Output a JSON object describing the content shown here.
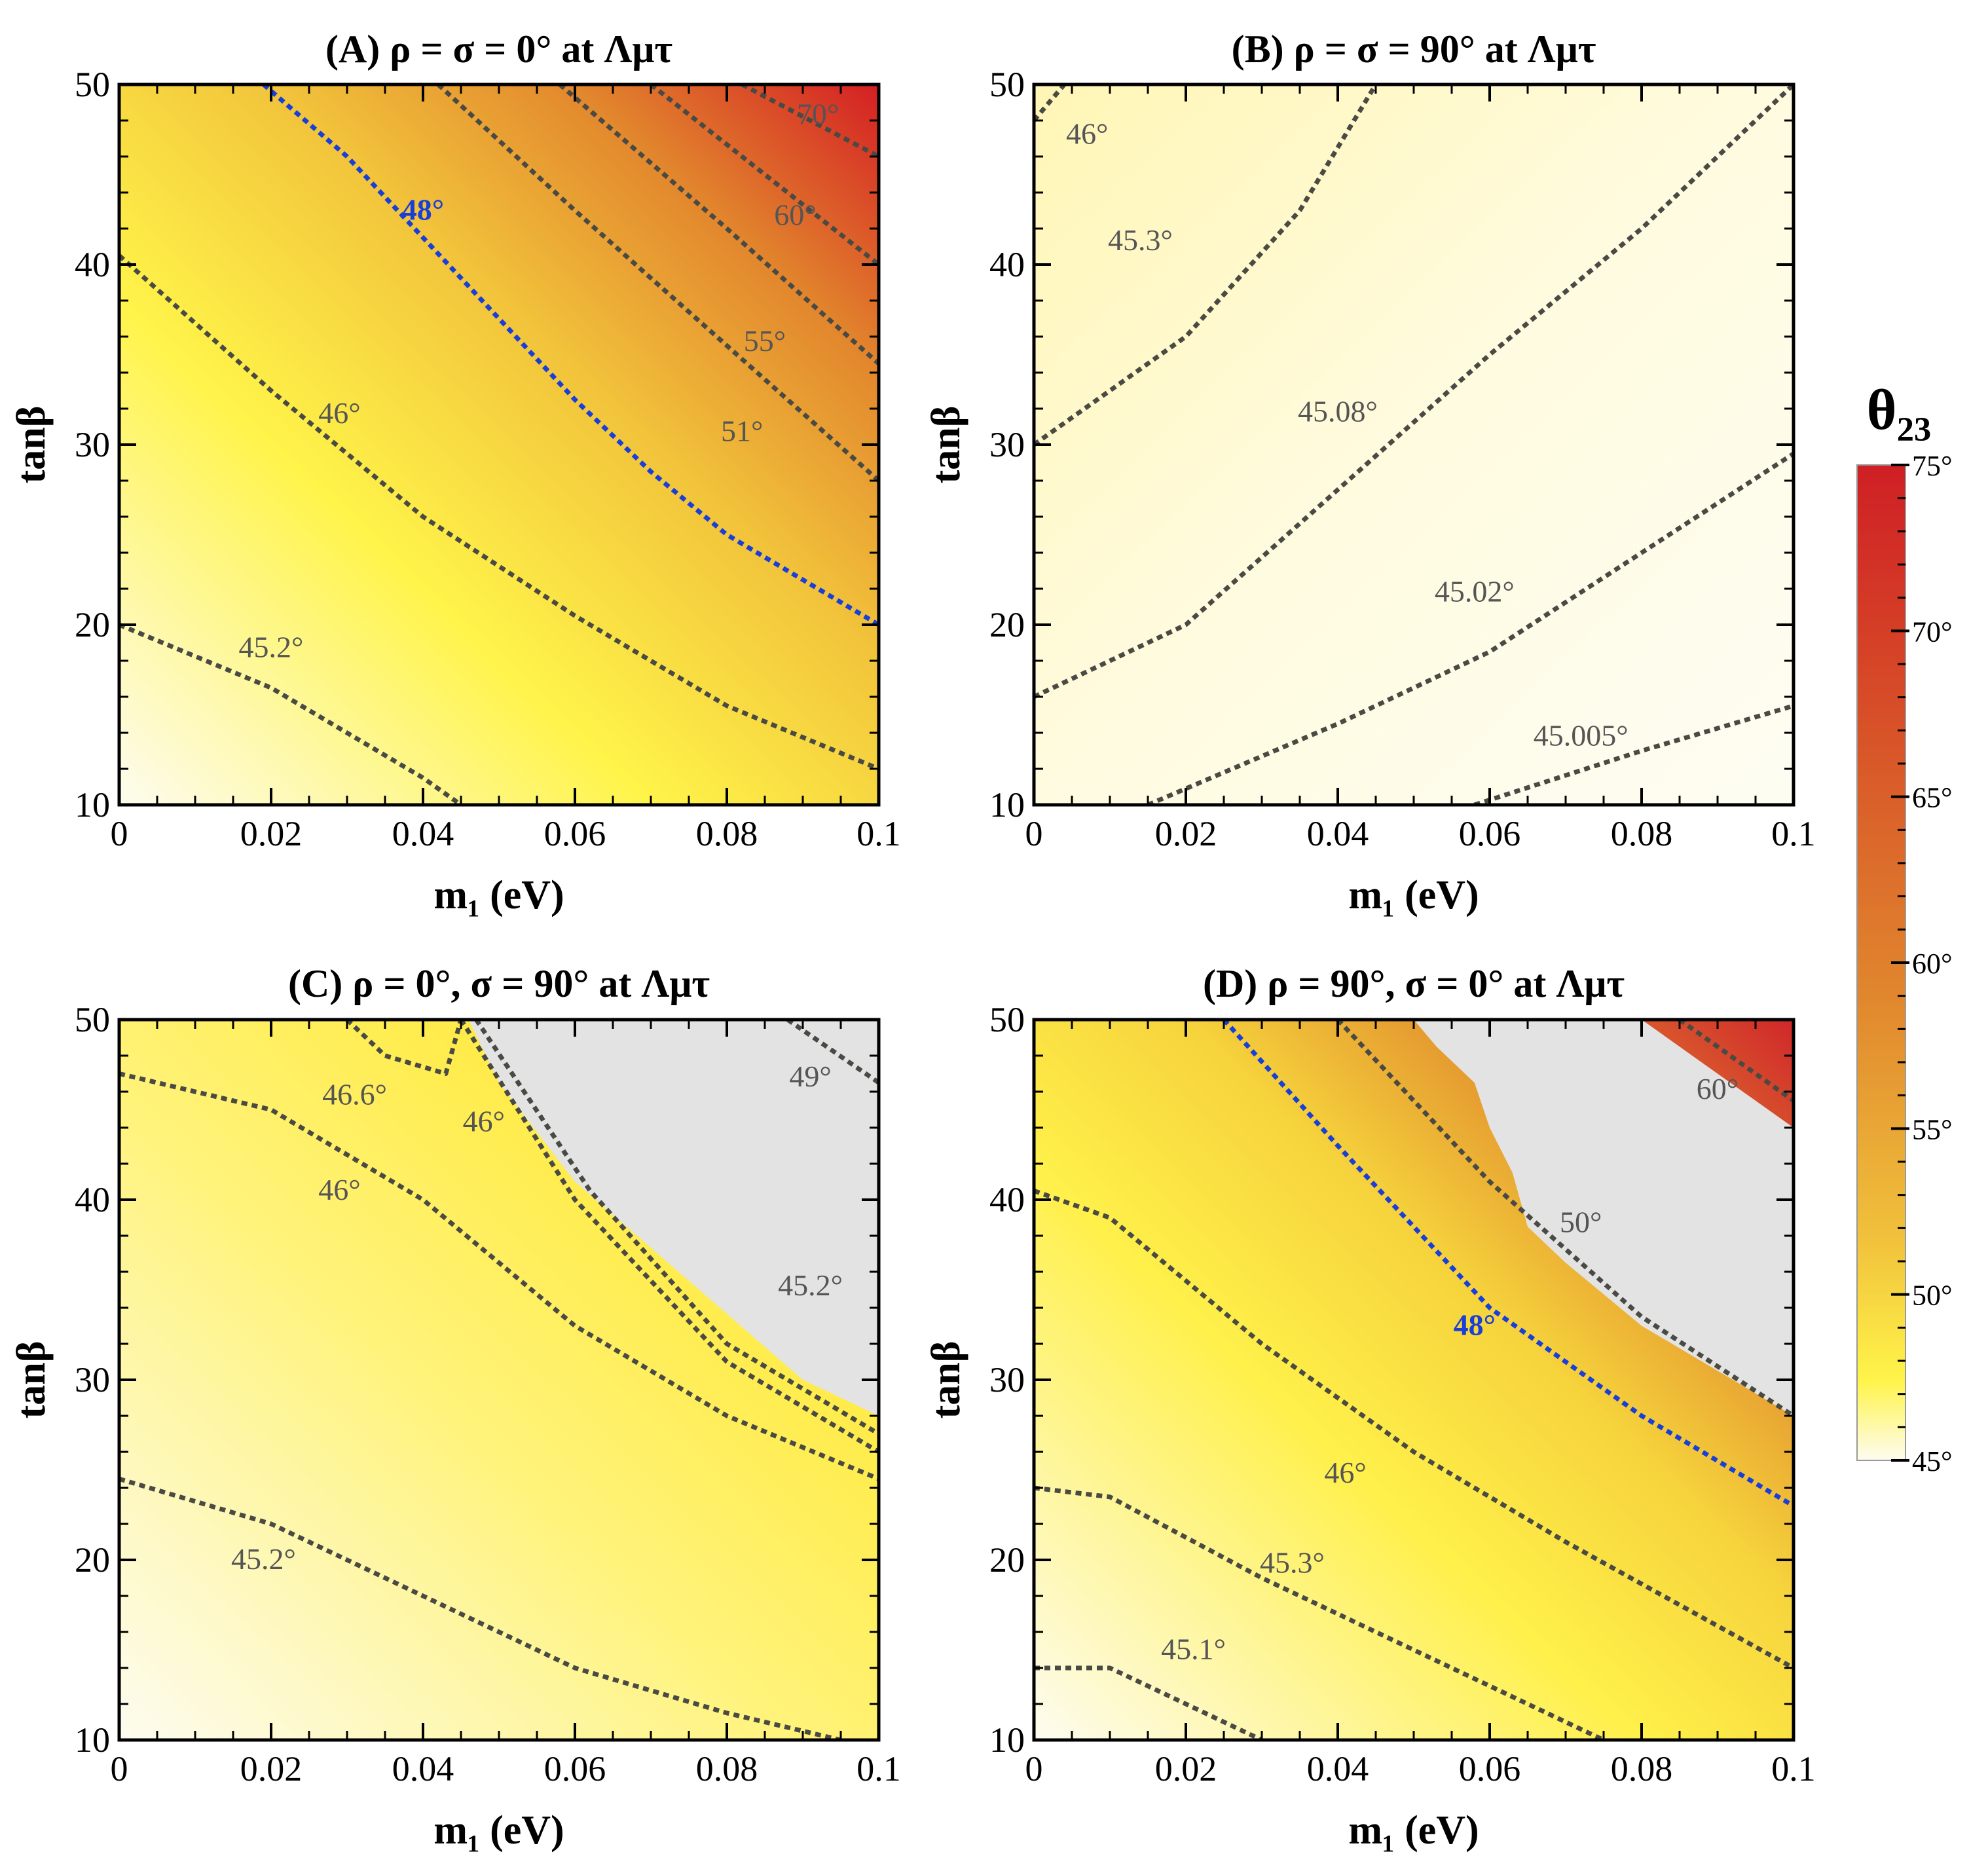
{
  "colorbar": {
    "title": "θ₂₃",
    "range": [
      45,
      75
    ],
    "ticks": [
      {
        "value": 75,
        "label": "75°"
      },
      {
        "value": 70,
        "label": "70°"
      },
      {
        "value": 65,
        "label": "65°"
      },
      {
        "value": 60,
        "label": "60°"
      },
      {
        "value": 55,
        "label": "55°"
      },
      {
        "value": 50,
        "label": "50°"
      },
      {
        "value": 45,
        "label": "45°"
      }
    ],
    "colors": [
      "#fdfcf0",
      "#fff44a",
      "#f1c23c",
      "#e18a2e",
      "#d43b26",
      "#cf1f25"
    ]
  },
  "chart_data": [
    {
      "panel": "A",
      "type": "heatmap",
      "title": "(A) ρ = σ = 0° at Λμτ",
      "xlabel": "m₁ (eV)",
      "ylabel": "tanβ",
      "xlim": [
        0,
        0.1
      ],
      "ylim": [
        10,
        50
      ],
      "xticks": [
        "0",
        "0.02",
        "0.04",
        "0.06",
        "0.08",
        "0.1"
      ],
      "yticks": [
        "10",
        "20",
        "30",
        "40",
        "50"
      ],
      "excluded_region": null,
      "contours": [
        {
          "label": "45.2°",
          "color": "gray",
          "label_at": [
            0.02,
            18.2
          ],
          "points": [
            [
              0,
              20
            ],
            [
              0.02,
              16.5
            ],
            [
              0.04,
              11.5
            ],
            [
              0.045,
              10
            ]
          ]
        },
        {
          "label": "46°",
          "color": "gray",
          "label_at": [
            0.029,
            31.2
          ],
          "points": [
            [
              0,
              40.5
            ],
            [
              0.02,
              33
            ],
            [
              0.04,
              26
            ],
            [
              0.06,
              20.5
            ],
            [
              0.08,
              15.5
            ],
            [
              0.1,
              12
            ]
          ]
        },
        {
          "label": "48°",
          "color": "blue",
          "label_at": [
            0.04,
            42.5
          ],
          "points": [
            [
              0.019,
              50
            ],
            [
              0.03,
              46
            ],
            [
              0.04,
              41.5
            ],
            [
              0.05,
              37
            ],
            [
              0.06,
              32.5
            ],
            [
              0.07,
              28.5
            ],
            [
              0.08,
              25
            ],
            [
              0.09,
              22.5
            ],
            [
              0.1,
              20
            ]
          ]
        },
        {
          "label": "51°",
          "color": "gray",
          "label_at": [
            0.082,
            30.2
          ],
          "points": [
            [
              0.042,
              50
            ],
            [
              0.06,
              43
            ],
            [
              0.08,
              35.5
            ],
            [
              0.1,
              28
            ]
          ]
        },
        {
          "label": "55°",
          "color": "gray",
          "label_at": [
            0.085,
            35.2
          ],
          "points": [
            [
              0.058,
              50
            ],
            [
              0.08,
              42
            ],
            [
              0.1,
              34.5
            ]
          ]
        },
        {
          "label": "60°",
          "color": "gray",
          "label_at": [
            0.089,
            42.2
          ],
          "points": [
            [
              0.07,
              50
            ],
            [
              0.085,
              45
            ],
            [
              0.1,
              40
            ]
          ]
        },
        {
          "label": "70°",
          "color": "gray",
          "label_at": [
            0.092,
            47.8
          ],
          "points": [
            [
              0.082,
              50
            ],
            [
              0.1,
              46
            ]
          ]
        }
      ]
    },
    {
      "panel": "B",
      "type": "heatmap",
      "title": "(B) ρ = σ = 90° at Λμτ",
      "xlabel": "m₁ (eV)",
      "ylabel": "tanβ",
      "xlim": [
        0,
        0.1
      ],
      "ylim": [
        10,
        50
      ],
      "xticks": [
        "0",
        "0.02",
        "0.04",
        "0.06",
        "0.08",
        "0.1"
      ],
      "yticks": [
        "10",
        "20",
        "30",
        "40",
        "50"
      ],
      "excluded_region": null,
      "contours": [
        {
          "label": "46°",
          "color": "gray",
          "label_at": [
            0.007,
            46.7
          ],
          "points": [
            [
              0,
              48
            ],
            [
              0.004,
              50
            ]
          ]
        },
        {
          "label": "45.3°",
          "color": "gray",
          "label_at": [
            0.014,
            40.8
          ],
          "points": [
            [
              0,
              30
            ],
            [
              0.02,
              36
            ],
            [
              0.035,
              43
            ],
            [
              0.045,
              50
            ]
          ]
        },
        {
          "label": "45.08°",
          "color": "gray",
          "label_at": [
            0.04,
            31.3
          ],
          "points": [
            [
              0,
              16
            ],
            [
              0.02,
              20
            ],
            [
              0.04,
              27.5
            ],
            [
              0.06,
              35
            ],
            [
              0.08,
              42
            ],
            [
              0.1,
              50
            ]
          ]
        },
        {
          "label": "45.02°",
          "color": "gray",
          "label_at": [
            0.058,
            21.3
          ],
          "points": [
            [
              0.015,
              10
            ],
            [
              0.04,
              14.5
            ],
            [
              0.06,
              18.5
            ],
            [
              0.08,
              24
            ],
            [
              0.1,
              29.5
            ]
          ]
        },
        {
          "label": "45.005°",
          "color": "gray",
          "label_at": [
            0.072,
            13.3
          ],
          "points": [
            [
              0.058,
              10
            ],
            [
              0.08,
              13
            ],
            [
              0.1,
              15.5
            ]
          ]
        }
      ]
    },
    {
      "panel": "C",
      "type": "heatmap",
      "title": "(C) ρ = 0°, σ = 90° at Λμτ",
      "xlabel": "m₁ (eV)",
      "ylabel": "tanβ",
      "xlim": [
        0,
        0.1
      ],
      "ylim": [
        10,
        50
      ],
      "xticks": [
        "0",
        "0.02",
        "0.04",
        "0.06",
        "0.08",
        "0.1"
      ],
      "yticks": [
        "10",
        "20",
        "30",
        "40",
        "50"
      ],
      "excluded_region": [
        [
          0.046,
          50
        ],
        [
          0.1,
          50
        ],
        [
          0.1,
          28
        ],
        [
          0.09,
          30
        ],
        [
          0.075,
          35.5
        ],
        [
          0.06,
          41
        ],
        [
          0.05,
          46.5
        ]
      ],
      "contours": [
        {
          "label": "45.2°",
          "color": "gray",
          "label_at": [
            0.019,
            19.5
          ],
          "points": [
            [
              0,
              24.5
            ],
            [
              0.02,
              22
            ],
            [
              0.04,
              18
            ],
            [
              0.06,
              14
            ],
            [
              0.08,
              11.5
            ],
            [
              0.095,
              10
            ]
          ]
        },
        {
          "label": "46°",
          "color": "gray",
          "label_at": [
            0.029,
            40
          ],
          "points": [
            [
              0,
              47
            ],
            [
              0.02,
              45
            ],
            [
              0.04,
              40
            ],
            [
              0.06,
              33
            ],
            [
              0.08,
              28
            ],
            [
              0.1,
              24.5
            ]
          ]
        },
        {
          "label": "46.6°",
          "color": "gray",
          "label_at": [
            0.031,
            45.3
          ],
          "points": [
            [
              0.03,
              50
            ],
            [
              0.035,
              48
            ],
            [
              0.043,
              47
            ],
            [
              0.045,
              50
            ]
          ]
        },
        {
          "label": "46°",
          "color": "gray",
          "label_at": [
            0.048,
            43.8
          ],
          "points": [
            [
              0.045,
              50
            ],
            [
              0.06,
              40
            ],
            [
              0.08,
              31
            ],
            [
              0.1,
              26
            ]
          ]
        },
        {
          "label": "",
          "color": "gray",
          "label_at": null,
          "points": [
            [
              0.047,
              50
            ],
            [
              0.062,
              40.5
            ],
            [
              0.08,
              32
            ],
            [
              0.1,
              27
            ]
          ]
        },
        {
          "label": "45.2°",
          "color": "gray",
          "label_at": [
            0.091,
            34.7
          ],
          "points": []
        },
        {
          "label": "49°",
          "color": "gray",
          "label_at": [
            0.091,
            46.3
          ],
          "points": [
            [
              0.088,
              50
            ],
            [
              0.1,
              46.5
            ]
          ]
        }
      ]
    },
    {
      "panel": "D",
      "type": "heatmap",
      "title": "(D) ρ = 90°, σ = 0° at Λμτ",
      "xlabel": "m₁ (eV)",
      "ylabel": "tanβ",
      "xlim": [
        0,
        0.1
      ],
      "ylim": [
        10,
        50
      ],
      "xticks": [
        "0",
        "0.02",
        "0.04",
        "0.06",
        "0.08",
        "0.1"
      ],
      "yticks": [
        "10",
        "20",
        "30",
        "40",
        "50"
      ],
      "excluded_region": [
        [
          0.05,
          50
        ],
        [
          0.08,
          50
        ],
        [
          0.1,
          44
        ],
        [
          0.1,
          28
        ],
        [
          0.08,
          33
        ],
        [
          0.07,
          36.5
        ],
        [
          0.065,
          38.5
        ],
        [
          0.063,
          41.5
        ],
        [
          0.06,
          44
        ],
        [
          0.058,
          46.5
        ],
        [
          0.053,
          48.5
        ]
      ],
      "contours": [
        {
          "label": "45.1°",
          "color": "gray",
          "label_at": [
            0.021,
            14.5
          ],
          "points": [
            [
              0,
              14
            ],
            [
              0.01,
              14
            ],
            [
              0.02,
              12
            ],
            [
              0.03,
              10
            ]
          ]
        },
        {
          "label": "45.3°",
          "color": "gray",
          "label_at": [
            0.034,
            19.3
          ],
          "points": [
            [
              0,
              24
            ],
            [
              0.01,
              23.5
            ],
            [
              0.03,
              19
            ],
            [
              0.05,
              15
            ],
            [
              0.07,
              11
            ],
            [
              0.075,
              10
            ]
          ]
        },
        {
          "label": "46°",
          "color": "gray",
          "label_at": [
            0.041,
            24.3
          ],
          "points": [
            [
              0,
              40.5
            ],
            [
              0.01,
              39
            ],
            [
              0.03,
              32
            ],
            [
              0.05,
              26
            ],
            [
              0.07,
              21
            ],
            [
              0.1,
              14
            ]
          ]
        },
        {
          "label": "48°",
          "color": "blue",
          "label_at": [
            0.058,
            32.5
          ],
          "points": [
            [
              0.025,
              50
            ],
            [
              0.04,
              43
            ],
            [
              0.06,
              34
            ],
            [
              0.08,
              28
            ],
            [
              0.1,
              23
            ]
          ]
        },
        {
          "label": "50°",
          "color": "gray",
          "label_at": [
            0.072,
            38.2
          ],
          "points": [
            [
              0.04,
              50
            ],
            [
              0.06,
              41
            ],
            [
              0.08,
              33.5
            ],
            [
              0.1,
              28
            ]
          ]
        },
        {
          "label": "60°",
          "color": "gray",
          "label_at": [
            0.09,
            45.6
          ],
          "points": [
            [
              0.085,
              50
            ],
            [
              0.1,
              45.5
            ]
          ]
        }
      ]
    }
  ]
}
